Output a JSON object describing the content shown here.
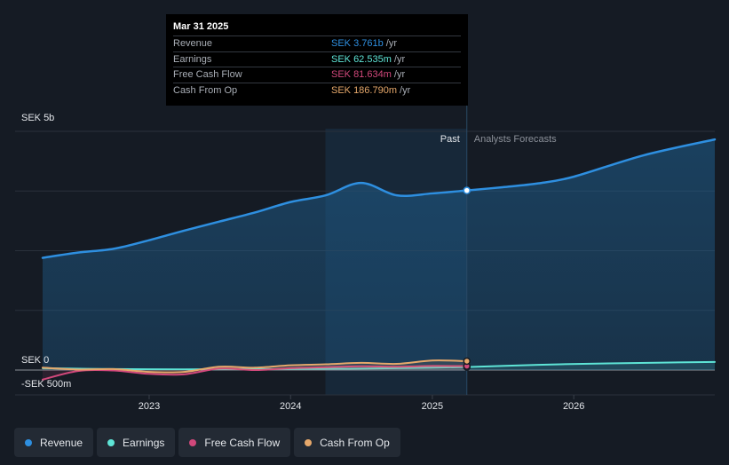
{
  "tooltip": {
    "date": "Mar 31 2025",
    "rows": [
      {
        "label": "Revenue",
        "value": "SEK 3.761b",
        "unit": "/yr",
        "color": "#2e8fe0"
      },
      {
        "label": "Earnings",
        "value": "SEK 62.535m",
        "unit": "/yr",
        "color": "#5ee4d6"
      },
      {
        "label": "Free Cash Flow",
        "value": "SEK 81.634m",
        "unit": "/yr",
        "color": "#d1487b"
      },
      {
        "label": "Cash From Op",
        "value": "SEK 186.790m",
        "unit": "/yr",
        "color": "#e6a86b"
      }
    ]
  },
  "legend": [
    {
      "label": "Revenue",
      "color": "#2e8fe0"
    },
    {
      "label": "Earnings",
      "color": "#5ee4d6"
    },
    {
      "label": "Free Cash Flow",
      "color": "#d1487b"
    },
    {
      "label": "Cash From Op",
      "color": "#e6a86b"
    }
  ],
  "chart_data": {
    "type": "line",
    "y_unit": "SEK millions",
    "y_tick_labels": [
      "SEK 5b",
      "SEK 0",
      "-SEK 500m"
    ],
    "ylim": [
      -500,
      5000
    ],
    "xlim": [
      "2022-04-01",
      "2026-12-31"
    ],
    "x_tick_labels": [
      "2023",
      "2024",
      "2025",
      "2026"
    ],
    "x_ticks": [
      "2023-01-01",
      "2024-01-01",
      "2025-01-01",
      "2026-01-01"
    ],
    "past_label": "Past",
    "forecast_label": "Analysts Forecasts",
    "divider_date": "2025-03-31",
    "past_region_start": "2024-03-31",
    "grid": true,
    "series": [
      {
        "name": "Revenue",
        "color": "#2e8fe0",
        "points": [
          [
            "2022-04-01",
            2350
          ],
          [
            "2022-07-01",
            2460
          ],
          [
            "2022-10-01",
            2540
          ],
          [
            "2023-01-01",
            2720
          ],
          [
            "2023-04-01",
            2920
          ],
          [
            "2023-07-01",
            3110
          ],
          [
            "2023-10-01",
            3300
          ],
          [
            "2024-01-01",
            3520
          ],
          [
            "2024-04-01",
            3660
          ],
          [
            "2024-07-01",
            3920
          ],
          [
            "2024-10-01",
            3660
          ],
          [
            "2025-01-01",
            3700
          ],
          [
            "2025-03-31",
            3761
          ],
          [
            "2025-07-01",
            3830
          ],
          [
            "2025-10-01",
            3910
          ],
          [
            "2026-01-01",
            4050
          ],
          [
            "2026-07-01",
            4500
          ],
          [
            "2026-12-31",
            4830
          ]
        ]
      },
      {
        "name": "Earnings",
        "color": "#5ee4d6",
        "points": [
          [
            "2022-04-01",
            40
          ],
          [
            "2022-10-01",
            20
          ],
          [
            "2023-04-01",
            15
          ],
          [
            "2023-10-01",
            20
          ],
          [
            "2024-04-01",
            25
          ],
          [
            "2024-10-01",
            40
          ],
          [
            "2025-03-31",
            62.535
          ],
          [
            "2025-10-01",
            110
          ],
          [
            "2026-04-01",
            140
          ],
          [
            "2026-12-31",
            170
          ]
        ]
      },
      {
        "name": "Free Cash Flow",
        "color": "#d1487b",
        "points": [
          [
            "2022-04-01",
            -200
          ],
          [
            "2022-07-01",
            -20
          ],
          [
            "2022-10-01",
            -10
          ],
          [
            "2023-01-01",
            -80
          ],
          [
            "2023-04-01",
            -90
          ],
          [
            "2023-07-01",
            30
          ],
          [
            "2023-10-01",
            0
          ],
          [
            "2024-01-01",
            40
          ],
          [
            "2024-04-01",
            60
          ],
          [
            "2024-07-01",
            80
          ],
          [
            "2024-10-01",
            70
          ],
          [
            "2025-01-01",
            85
          ],
          [
            "2025-03-31",
            81.634
          ]
        ]
      },
      {
        "name": "Cash From Op",
        "color": "#e6a86b",
        "points": [
          [
            "2022-04-01",
            50
          ],
          [
            "2022-07-01",
            10
          ],
          [
            "2022-10-01",
            20
          ],
          [
            "2023-01-01",
            -40
          ],
          [
            "2023-04-01",
            -40
          ],
          [
            "2023-07-01",
            70
          ],
          [
            "2023-10-01",
            50
          ],
          [
            "2024-01-01",
            100
          ],
          [
            "2024-04-01",
            120
          ],
          [
            "2024-07-01",
            150
          ],
          [
            "2024-10-01",
            130
          ],
          [
            "2025-01-01",
            200
          ],
          [
            "2025-03-31",
            186.79
          ]
        ]
      }
    ]
  }
}
